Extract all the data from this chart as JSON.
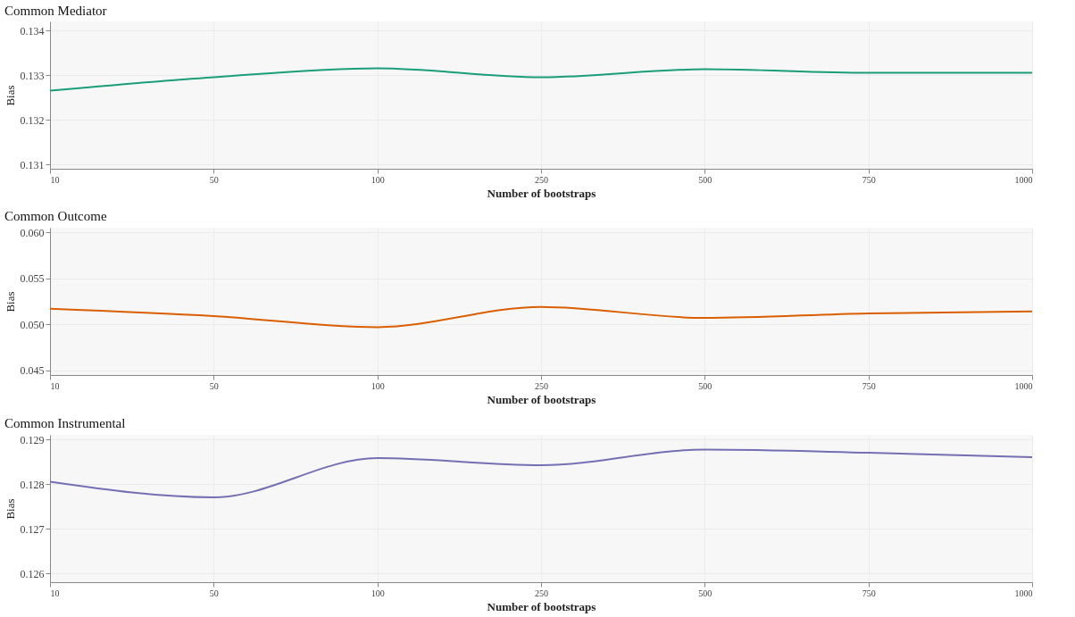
{
  "chart_data": [
    {
      "type": "line",
      "title": "Common Mediator",
      "xlabel": "Number of bootstraps",
      "ylabel": "Bias",
      "categories": [
        "10",
        "50",
        "100",
        "250",
        "500",
        "750",
        "1000"
      ],
      "series": [
        {
          "color": "#1b9e77",
          "values": [
            0.13265,
            0.13295,
            0.13315,
            0.13295,
            0.13313,
            0.13305,
            0.13305
          ]
        }
      ],
      "ylim": [
        0.1309,
        0.1342
      ],
      "yticks": [
        0.131,
        0.132,
        0.133,
        0.134
      ],
      "grid": true,
      "legend": false
    },
    {
      "type": "line",
      "title": "Common Outcome",
      "xlabel": "Number of bootstraps",
      "ylabel": "Bias",
      "categories": [
        "10",
        "50",
        "100",
        "250",
        "500",
        "750",
        "1000"
      ],
      "series": [
        {
          "color": "#d95f02",
          "values": [
            0.0517,
            0.0509,
            0.0497,
            0.0519,
            0.0507,
            0.0512,
            0.0514
          ]
        }
      ],
      "ylim": [
        0.0445,
        0.0605
      ],
      "yticks": [
        0.045,
        {
          "value": 0.05,
          "label": "0.050"
        },
        0.055,
        {
          "value": 0.06,
          "label": "0.060"
        }
      ],
      "grid": true,
      "legend": false
    },
    {
      "type": "line",
      "title": "Common Instrumental",
      "xlabel": "Number of bootstraps",
      "ylabel": "Bias",
      "categories": [
        "10",
        "50",
        "100",
        "250",
        "500",
        "750",
        "1000"
      ],
      "series": [
        {
          "color": "#7570b3",
          "values": [
            0.12805,
            0.1277,
            0.12858,
            0.12842,
            0.12877,
            0.1287,
            0.1286
          ]
        }
      ],
      "ylim": [
        0.1258,
        0.1291
      ],
      "yticks": [
        0.126,
        0.127,
        0.128,
        0.129
      ],
      "grid": true,
      "legend": false
    }
  ]
}
